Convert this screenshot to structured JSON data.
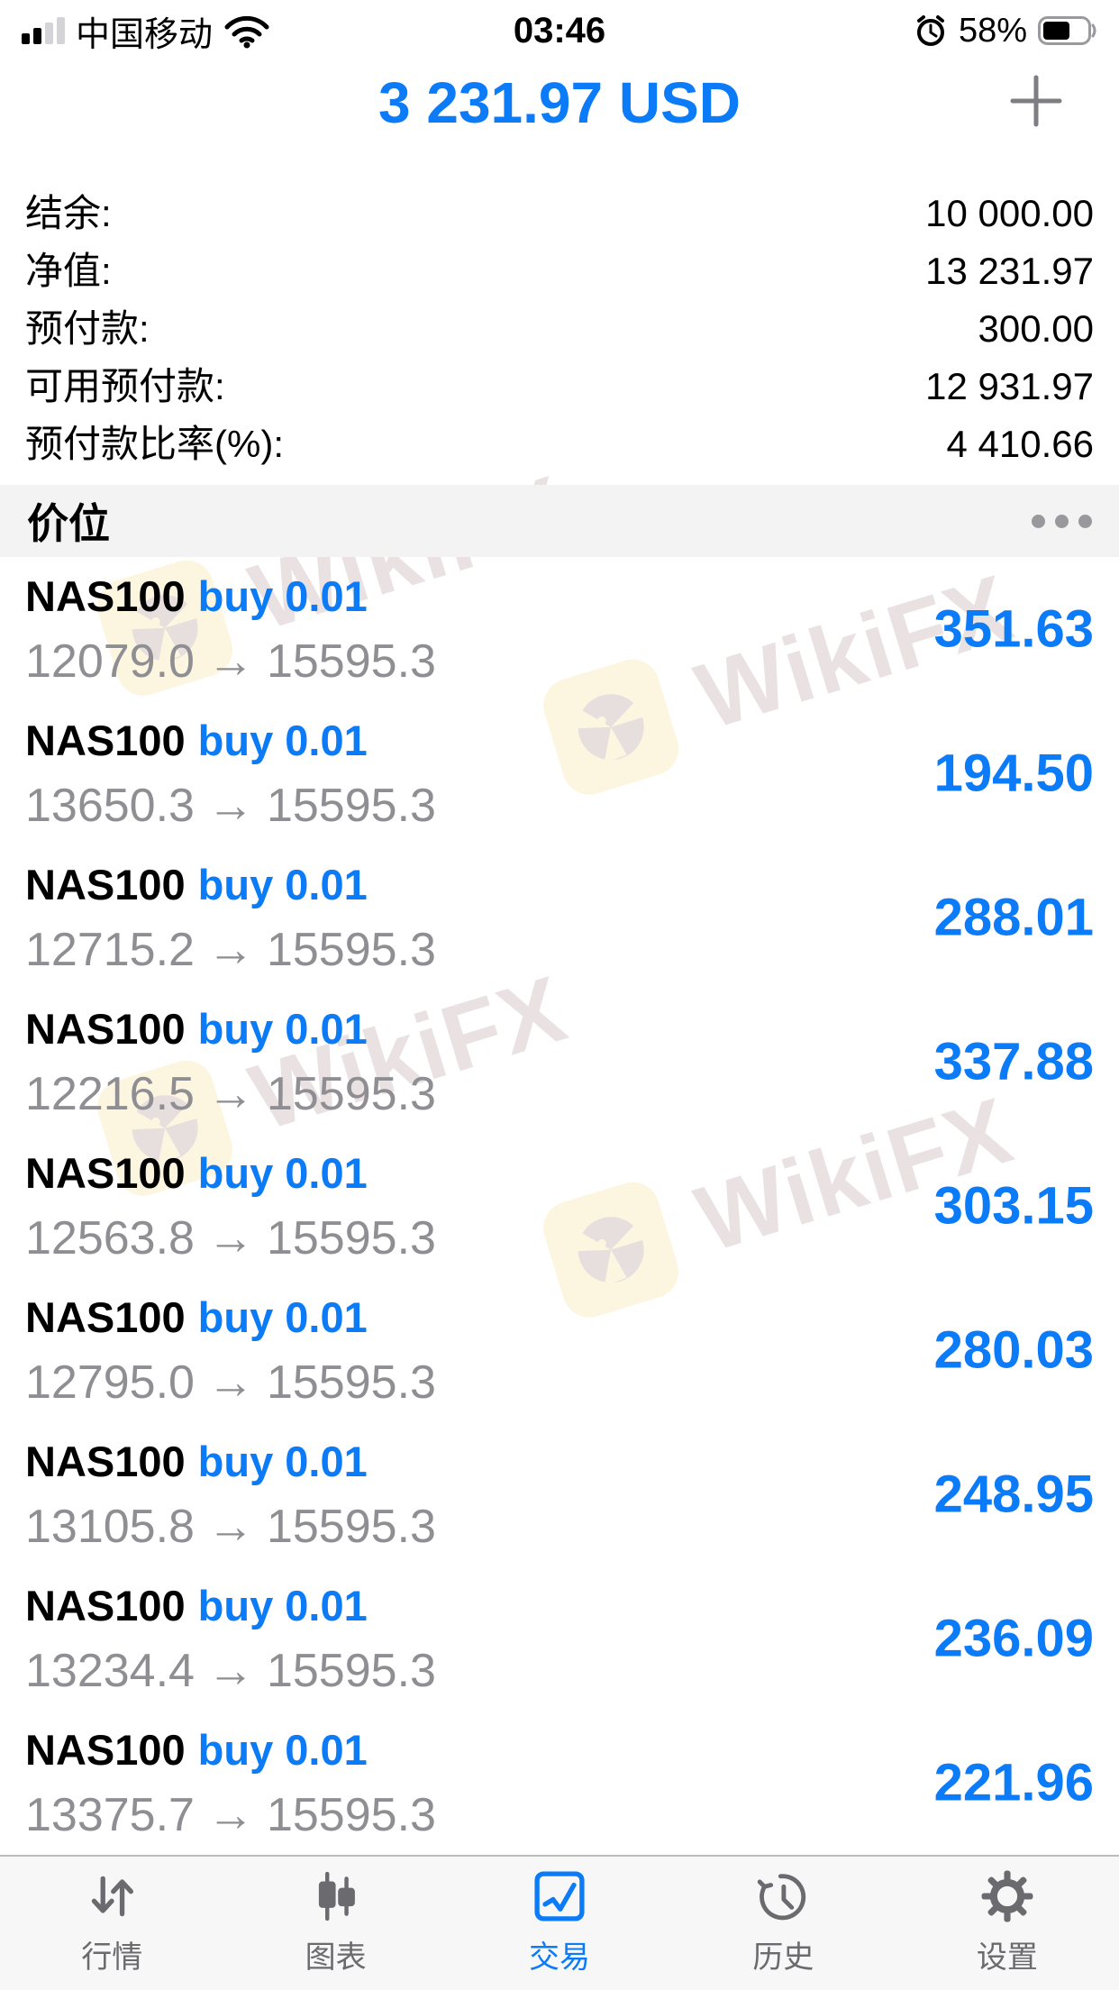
{
  "status_bar": {
    "carrier": "中国移动",
    "time": "03:46",
    "battery_percent": "58%"
  },
  "header": {
    "title": "3 231.97 USD"
  },
  "account_summary": {
    "rows": [
      {
        "label": "结余:",
        "value": "10 000.00"
      },
      {
        "label": "净值:",
        "value": "13 231.97"
      },
      {
        "label": "预付款:",
        "value": "300.00"
      },
      {
        "label": "可用预付款:",
        "value": "12 931.97"
      },
      {
        "label": "预付款比率(%):",
        "value": "4 410.66"
      }
    ]
  },
  "section": {
    "title": "价位"
  },
  "ui": {
    "arrow": "→"
  },
  "positions": [
    {
      "symbol": "NAS100",
      "side_volume": "buy 0.01",
      "open": "12079.0",
      "current": "15595.3",
      "profit": "351.63"
    },
    {
      "symbol": "NAS100",
      "side_volume": "buy 0.01",
      "open": "13650.3",
      "current": "15595.3",
      "profit": "194.50"
    },
    {
      "symbol": "NAS100",
      "side_volume": "buy 0.01",
      "open": "12715.2",
      "current": "15595.3",
      "profit": "288.01"
    },
    {
      "symbol": "NAS100",
      "side_volume": "buy 0.01",
      "open": "12216.5",
      "current": "15595.3",
      "profit": "337.88"
    },
    {
      "symbol": "NAS100",
      "side_volume": "buy 0.01",
      "open": "12563.8",
      "current": "15595.3",
      "profit": "303.15"
    },
    {
      "symbol": "NAS100",
      "side_volume": "buy 0.01",
      "open": "12795.0",
      "current": "15595.3",
      "profit": "280.03"
    },
    {
      "symbol": "NAS100",
      "side_volume": "buy 0.01",
      "open": "13105.8",
      "current": "15595.3",
      "profit": "248.95"
    },
    {
      "symbol": "NAS100",
      "side_volume": "buy 0.01",
      "open": "13234.4",
      "current": "15595.3",
      "profit": "236.09"
    },
    {
      "symbol": "NAS100",
      "side_volume": "buy 0.01",
      "open": "13375.7",
      "current": "15595.3",
      "profit": "221.96"
    }
  ],
  "watermark": {
    "text": "WikiFX"
  },
  "tab_bar": {
    "items": [
      {
        "label": "行情",
        "icon": "arrows-up-down-icon",
        "active": false
      },
      {
        "label": "图表",
        "icon": "candlestick-icon",
        "active": false
      },
      {
        "label": "交易",
        "icon": "trade-chart-icon",
        "active": true
      },
      {
        "label": "历史",
        "icon": "history-clock-icon",
        "active": false
      },
      {
        "label": "设置",
        "icon": "gear-icon",
        "active": false
      }
    ]
  },
  "colors": {
    "accent_blue": "#0c7bf8",
    "price_gray": "#8e8e93",
    "section_band_bg": "#f3f3f4",
    "tabbar_bg": "#f7f7f7",
    "tab_inactive": "#6a6a6f",
    "watermark_icon_bg": "#fcf5e0",
    "watermark_icon_fg": "#e7dede",
    "watermark_text": "#eae2e2"
  }
}
